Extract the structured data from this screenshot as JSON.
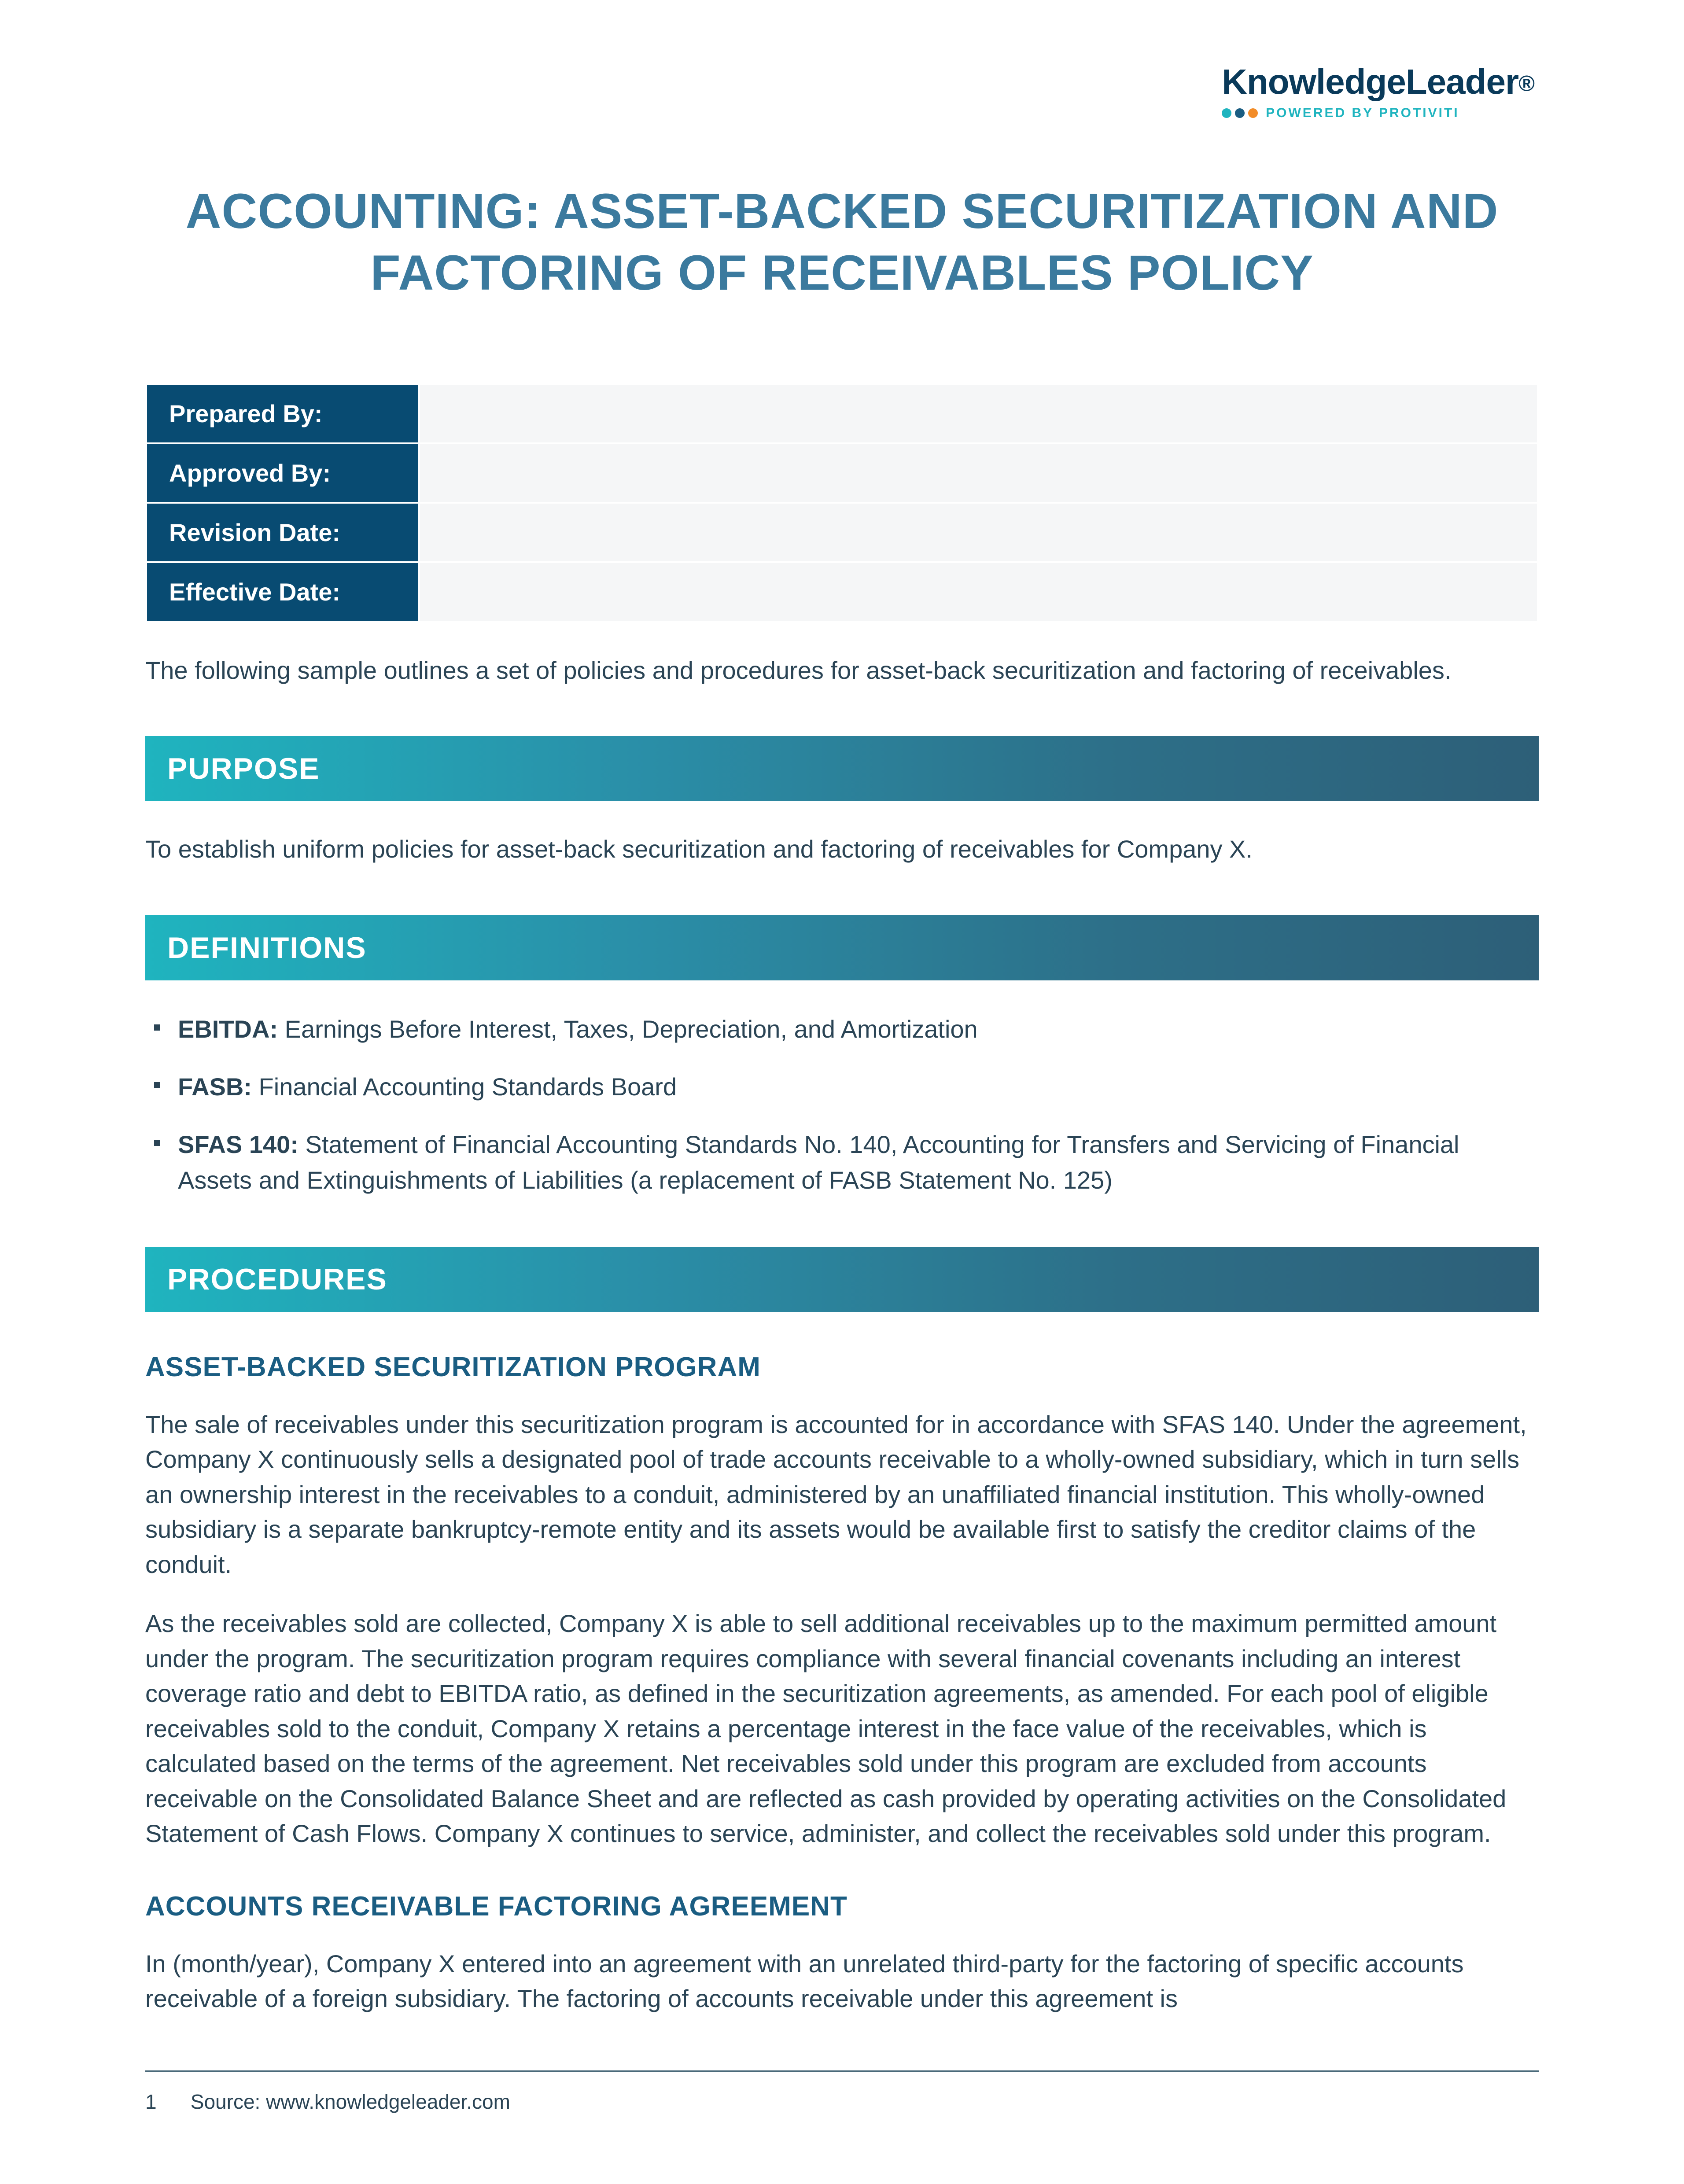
{
  "logo": {
    "brand": "KnowledgeLeader",
    "trademark": "®",
    "tagline": "POWERED BY PROTIVITI",
    "dot_colors": [
      "#1fb4bf",
      "#1a5d82",
      "#f28c28"
    ]
  },
  "title": "ACCOUNTING: ASSET-BACKED SECURITIZATION AND FACTORING OF RECEIVABLES POLICY",
  "meta_rows": [
    {
      "label": "Prepared By:",
      "value": ""
    },
    {
      "label": "Approved By:",
      "value": ""
    },
    {
      "label": "Revision Date:",
      "value": ""
    },
    {
      "label": "Effective Date:",
      "value": ""
    }
  ],
  "intro": "The following sample outlines a set of policies and procedures for asset-back securitization and factoring of receivables.",
  "sections": {
    "purpose": {
      "heading": "PURPOSE",
      "body": "To establish uniform policies for asset-back securitization and factoring of receivables for Company X."
    },
    "definitions": {
      "heading": "DEFINITIONS",
      "items": [
        {
          "term": "EBITDA:",
          "desc": " Earnings Before Interest, Taxes, Depreciation, and Amortization"
        },
        {
          "term": "FASB:",
          "desc": " Financial Accounting Standards Board"
        },
        {
          "term": "SFAS 140:",
          "desc": " Statement of Financial Accounting Standards No. 140, Accounting for Transfers and Servicing of Financial Assets and Extinguishments of Liabilities (a replacement of FASB Statement No. 125)"
        }
      ]
    },
    "procedures": {
      "heading": "PROCEDURES",
      "sub1": {
        "title": "ASSET-BACKED SECURITIZATION PROGRAM",
        "p1": "The sale of receivables under this securitization program is accounted for in accordance with SFAS 140. Under the agreement, Company X continuously sells a designated pool of trade accounts receivable to a wholly-owned subsidiary, which in turn sells an ownership interest in the receivables to a conduit, administered by an unaffiliated financial institution. This wholly-owned subsidiary is a separate bankruptcy-remote entity and its assets would be available first to satisfy the creditor claims of the conduit.",
        "p2": "As the receivables sold are collected, Company X is able to sell additional receivables up to the maximum permitted amount under the program. The securitization program requires compliance with several financial covenants including an interest coverage ratio and debt to EBITDA ratio, as defined in the securitization agreements, as amended. For each pool of eligible receivables sold to the conduit, Company X retains a percentage interest in the face value of the receivables, which is calculated based on the terms of the agreement. Net receivables sold under this program are excluded from accounts receivable on the Consolidated Balance Sheet and are reflected as cash provided by operating activities on the Consolidated Statement of Cash Flows. Company X continues to service, administer, and collect the receivables sold under this program."
      },
      "sub2": {
        "title": "ACCOUNTS RECEIVABLE FACTORING AGREEMENT",
        "p1": "In (month/year), Company X entered into an agreement with an unrelated third-party for the factoring of specific accounts receivable of a foreign subsidiary. The factoring of accounts receivable under this agreement is"
      }
    }
  },
  "footer": {
    "page": "1",
    "source": "Source: www.knowledgeleader.com"
  },
  "colors": {
    "title_color": "#3b7a9e",
    "meta_bg": "#084b72",
    "body_text": "#2a4455",
    "subhead": "#1a5d82",
    "bar_gradient_start": "#1fb4bf",
    "bar_gradient_end": "#2d5f78"
  }
}
